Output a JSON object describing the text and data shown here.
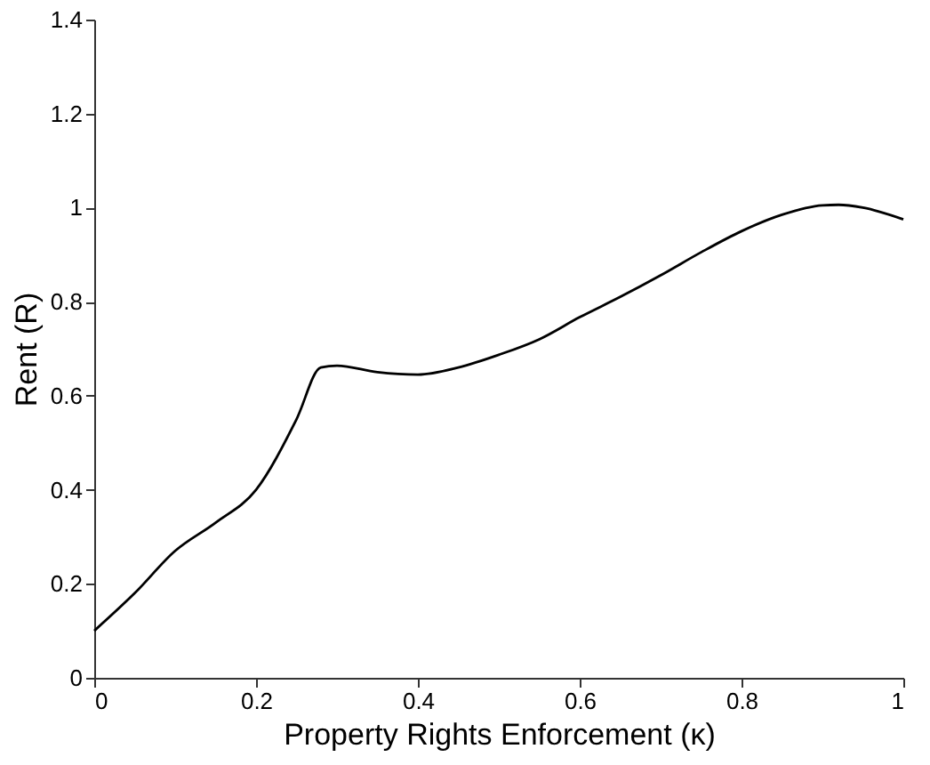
{
  "chart_data": {
    "type": "line",
    "xlabel": "Property Rights Enforcement (κ)",
    "ylabel": "Rent (R)",
    "x": [
      0,
      0.05,
      0.1,
      0.15,
      0.2,
      0.25,
      0.28,
      0.3,
      0.35,
      0.4,
      0.45,
      0.5,
      0.55,
      0.6,
      0.65,
      0.7,
      0.75,
      0.8,
      0.85,
      0.9,
      0.92,
      0.95,
      1.0
    ],
    "series": [
      {
        "color": "#000000",
        "values": [
          0.1,
          0.18,
          0.27,
          0.33,
          0.4,
          0.55,
          0.66,
          0.664,
          0.65,
          0.645,
          0.66,
          0.687,
          0.72,
          0.767,
          0.81,
          0.856,
          0.905,
          0.95,
          0.985,
          1.005,
          1.006,
          1.0,
          0.975
        ]
      }
    ],
    "xlim": [
      0,
      1
    ],
    "ylim": [
      0,
      1.4
    ],
    "xticks": [
      0,
      0.2,
      0.4,
      0.6,
      0.8,
      1
    ],
    "yticks": [
      0,
      0.2,
      0.4,
      0.6,
      0.8,
      1,
      1.2,
      1.4
    ],
    "grid": false,
    "marker": "none",
    "line_style": "solid"
  }
}
